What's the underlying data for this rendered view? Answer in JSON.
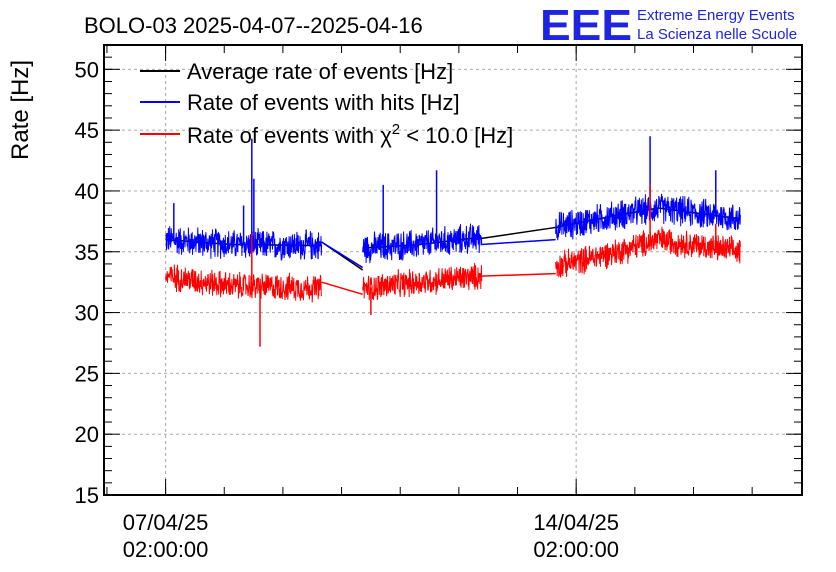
{
  "chart_data": {
    "type": "line",
    "title": "BOLO-03 2025-04-07--2025-04-16",
    "ylabel": "Rate [Hz]",
    "xlabel": "",
    "ylim": [
      15,
      52
    ],
    "yticks": [
      15,
      20,
      25,
      30,
      35,
      40,
      45,
      50
    ],
    "xlim": [
      -0.15,
      1.55
    ],
    "xticks": [
      {
        "x": 0.0,
        "line1": "07/04/25",
        "line2": "02:00:00"
      },
      {
        "x": 1.0,
        "line1": "14/04/25",
        "line2": "02:00:00"
      }
    ],
    "x_unit": "weeks since 07/04/25 02:00:00",
    "grid": true,
    "legend_position": "top-left",
    "series": [
      {
        "name": "Average rate of events [Hz]",
        "legend_label": "Average rate of events [Hz]",
        "color": "#000000",
        "segments": [
          {
            "x": [
              0.0,
              0.16,
              0.38
            ],
            "y": [
              36.0,
              35.6,
              35.5
            ]
          },
          {
            "x": [
              0.48,
              0.62,
              0.77
            ],
            "y": [
              35.3,
              35.6,
              36.2
            ]
          },
          {
            "x": [
              0.95,
              1.1,
              1.2,
              1.4
            ],
            "y": [
              37.0,
              38.0,
              38.6,
              37.7
            ]
          }
        ],
        "bridges": [
          {
            "x": [
              0.38,
              0.48
            ],
            "y": [
              35.8,
              33.5
            ]
          },
          {
            "x": [
              0.77,
              0.95
            ],
            "y": [
              36.1,
              37.0
            ]
          }
        ]
      },
      {
        "name": "Rate of events with hits [Hz]",
        "legend_label": "Rate of events with hits [Hz]",
        "color": "#0000ff",
        "noise": 1.1,
        "segments": [
          {
            "x": [
              0.0,
              0.16,
              0.38
            ],
            "y": [
              36.0,
              35.6,
              35.5
            ]
          },
          {
            "x": [
              0.48,
              0.62,
              0.77
            ],
            "y": [
              35.3,
              35.6,
              36.2
            ]
          },
          {
            "x": [
              0.95,
              1.1,
              1.2,
              1.4
            ],
            "y": [
              37.0,
              38.0,
              38.6,
              37.7
            ]
          }
        ],
        "spikes": [
          {
            "x": 0.19,
            "y": 38.8
          },
          {
            "x": 0.21,
            "y": 44.3
          },
          {
            "x": 0.215,
            "y": 41.0
          },
          {
            "x": 0.66,
            "y": 41.7
          },
          {
            "x": 0.53,
            "y": 40.5
          },
          {
            "x": 1.18,
            "y": 44.5
          },
          {
            "x": 1.34,
            "y": 41.7
          },
          {
            "x": 0.02,
            "y": 39.0
          }
        ],
        "bridges": [
          {
            "x": [
              0.38,
              0.48
            ],
            "y": [
              35.8,
              33.7
            ]
          },
          {
            "x": [
              0.77,
              0.95
            ],
            "y": [
              35.6,
              36.0
            ]
          }
        ]
      },
      {
        "name": "Rate of events with χ² < 10.0 [Hz]",
        "legend_label": "Rate of events with χ",
        "legend_label_sup": "2",
        "legend_label_tail": " < 10.0 [Hz]",
        "color": "#ff0000",
        "noise": 1.0,
        "segments": [
          {
            "x": [
              0.0,
              0.16,
              0.38
            ],
            "y": [
              33.0,
              32.2,
              32.0
            ]
          },
          {
            "x": [
              0.48,
              0.62,
              0.77
            ],
            "y": [
              32.0,
              32.5,
              33.0
            ]
          },
          {
            "x": [
              0.95,
              1.1,
              1.2,
              1.4
            ],
            "y": [
              33.8,
              35.0,
              36.0,
              35.0
            ]
          }
        ],
        "spikes": [
          {
            "x": 0.21,
            "y": 36.5
          },
          {
            "x": 0.23,
            "y": 27.2
          },
          {
            "x": 1.18,
            "y": 40.5
          },
          {
            "x": 1.34,
            "y": 37.3
          },
          {
            "x": 0.5,
            "y": 29.8
          }
        ],
        "bridges": [
          {
            "x": [
              0.38,
              0.48
            ],
            "y": [
              32.5,
              31.5
            ]
          },
          {
            "x": [
              0.77,
              0.95
            ],
            "y": [
              33.0,
              33.2
            ]
          }
        ]
      }
    ]
  },
  "logo": {
    "letters": "EEE",
    "line1": "Extreme Energy Events",
    "line2": "La Scienza nelle Scuole",
    "color": "#1f24e0"
  }
}
